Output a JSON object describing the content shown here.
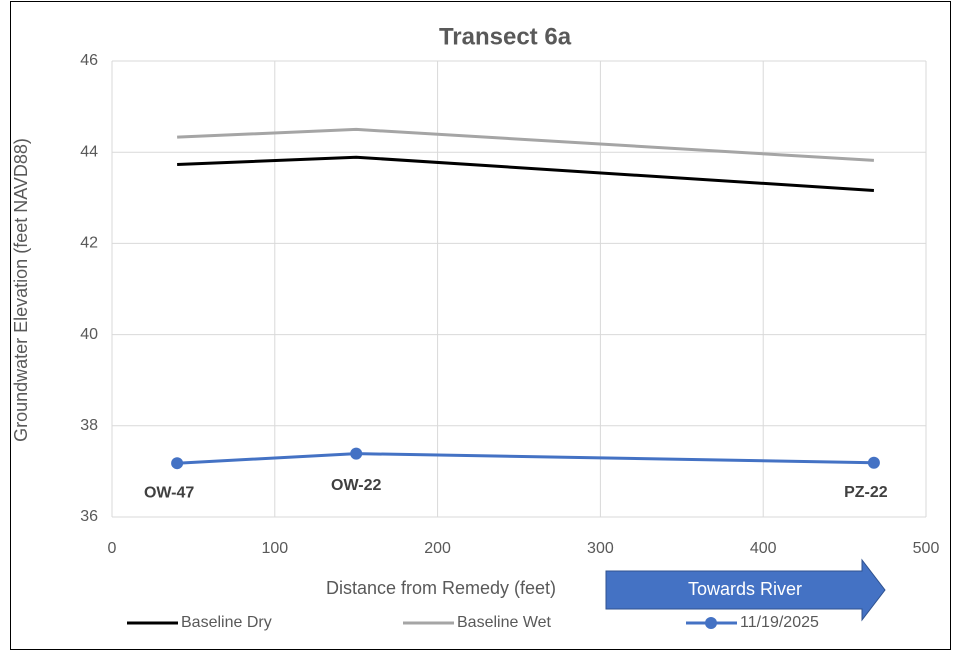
{
  "chart_data": {
    "type": "line",
    "title": "Transect 6a",
    "x_label": "Distance from Remedy (feet)",
    "y_label": "Groundwater Elevation (feet NAVD88)",
    "xlim": [
      0,
      500
    ],
    "xticks": [
      0,
      100,
      200,
      300,
      400,
      500
    ],
    "ylim": [
      36,
      46
    ],
    "yticks": [
      36,
      38,
      40,
      42,
      44,
      46
    ],
    "grid": true,
    "x": [
      40,
      150,
      468
    ],
    "series": [
      {
        "name": "Baseline Dry",
        "color": "#000000",
        "values": [
          43.73,
          43.89,
          43.16
        ],
        "markers": false
      },
      {
        "name": "Baseline Wet",
        "color": "#a5a5a5",
        "values": [
          44.33,
          44.5,
          43.82
        ],
        "markers": false
      },
      {
        "name": "11/19/2025",
        "color": "#4472c4",
        "values": [
          37.18,
          37.39,
          37.19
        ],
        "markers": true
      }
    ],
    "annotations": [
      "OW-47",
      "OW-22",
      "PZ-22"
    ],
    "arrow_label": "Towards River",
    "legend": "bottom"
  }
}
